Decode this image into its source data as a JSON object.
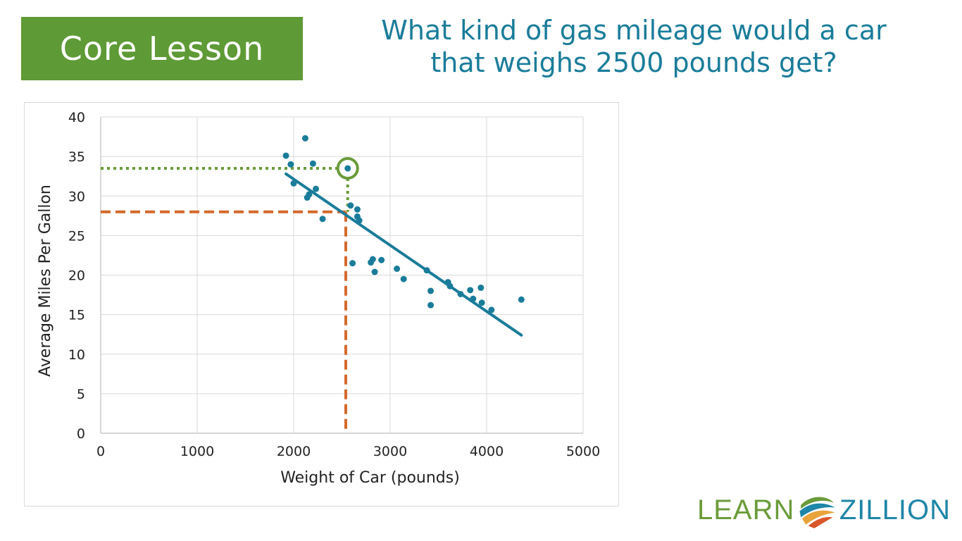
{
  "header": {
    "badge_label": "Core Lesson",
    "question_line1": "What kind of gas mileage would a car",
    "question_line2": "that weighs 2500 pounds get?"
  },
  "logo": {
    "left_word": "LEARN",
    "right_word": "ZILLION",
    "colors": [
      "#6a9b3a",
      "#1e86a8",
      "#e8a33a",
      "#d9562b"
    ]
  },
  "chart_data": {
    "type": "scatter",
    "title": "",
    "xlabel": "Weight of Car (pounds)",
    "ylabel": "Average Miles Per Gallon",
    "xlim": [
      0,
      5000
    ],
    "ylim": [
      0,
      40
    ],
    "x_ticks": [
      0,
      1000,
      2000,
      3000,
      4000,
      5000
    ],
    "y_ticks": [
      0,
      5,
      10,
      15,
      20,
      25,
      30,
      35,
      40
    ],
    "grid": true,
    "legend": "none",
    "point_color": "#1a7c9a",
    "points": [
      {
        "x": 1920,
        "y": 35.1
      },
      {
        "x": 1970,
        "y": 34.0
      },
      {
        "x": 2000,
        "y": 31.6
      },
      {
        "x": 2120,
        "y": 37.3
      },
      {
        "x": 2200,
        "y": 34.1
      },
      {
        "x": 2140,
        "y": 29.8
      },
      {
        "x": 2160,
        "y": 30.2
      },
      {
        "x": 2230,
        "y": 30.9
      },
      {
        "x": 2300,
        "y": 27.1
      },
      {
        "x": 2560,
        "y": 33.5
      },
      {
        "x": 2590,
        "y": 28.8
      },
      {
        "x": 2660,
        "y": 28.3
      },
      {
        "x": 2660,
        "y": 27.4
      },
      {
        "x": 2680,
        "y": 26.9
      },
      {
        "x": 2610,
        "y": 21.5
      },
      {
        "x": 2800,
        "y": 21.6
      },
      {
        "x": 2820,
        "y": 22.0
      },
      {
        "x": 2840,
        "y": 20.4
      },
      {
        "x": 2910,
        "y": 21.9
      },
      {
        "x": 3070,
        "y": 20.8
      },
      {
        "x": 3140,
        "y": 19.5
      },
      {
        "x": 3380,
        "y": 20.6
      },
      {
        "x": 3420,
        "y": 18.0
      },
      {
        "x": 3420,
        "y": 16.2
      },
      {
        "x": 3600,
        "y": 19.1
      },
      {
        "x": 3620,
        "y": 18.6
      },
      {
        "x": 3730,
        "y": 17.6
      },
      {
        "x": 3830,
        "y": 18.1
      },
      {
        "x": 3860,
        "y": 17.0
      },
      {
        "x": 3940,
        "y": 18.4
      },
      {
        "x": 3950,
        "y": 16.5
      },
      {
        "x": 4050,
        "y": 15.6
      },
      {
        "x": 4360,
        "y": 16.9
      }
    ],
    "trendline": {
      "from": {
        "x": 1920,
        "y": 32.8
      },
      "to": {
        "x": 4360,
        "y": 12.4
      },
      "color": "#1a7c9a"
    },
    "annotations": {
      "highlight_point": {
        "x": 2560,
        "y": 33.5,
        "color": "#6a9b3a"
      },
      "green_dotted_y": 33.5,
      "orange_dashed_x": 2540,
      "orange_dashed_y": 28.0,
      "green_color": "#6a9b3a",
      "orange_color": "#d4692c"
    }
  }
}
